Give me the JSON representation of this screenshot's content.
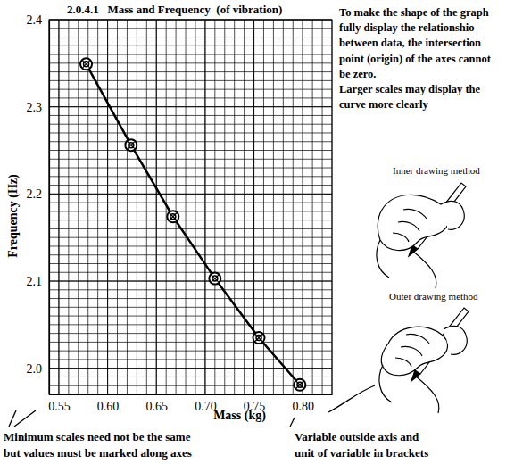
{
  "chart_data": {
    "type": "line",
    "title": "2.0.4.1   Mass and Frequency  (of vibration)",
    "x_label": "Mass (kg)",
    "y_label": "Frequency (Hz)",
    "x": [
      0.578,
      0.624,
      0.667,
      0.71,
      0.755,
      0.797
    ],
    "values": [
      2.349,
      2.256,
      2.174,
      2.103,
      2.035,
      1.981
    ],
    "color": "#000000",
    "marker": "circle",
    "line_style": "solid",
    "grid": true,
    "xlim": [
      0.54,
      0.83
    ],
    "ylim": [
      1.97,
      2.4
    ],
    "xticks": [
      0.55,
      {
        "value": 0.6,
        "label": "0.60"
      },
      0.65,
      {
        "value": 0.7,
        "label": "0.70"
      },
      0.75,
      {
        "value": 0.8,
        "label": "0.80"
      }
    ],
    "yticks": [
      {
        "value": 2,
        "label": "2.0"
      },
      2.1,
      2.2,
      2.3,
      2.4
    ],
    "annotations": [
      {
        "lines": [
          "To make the shape of the graph",
          "fully display the relationshio",
          "between data, the intersection",
          "point (origin) of the axes cannot",
          "be zero.",
          "Larger scales may display the",
          "curve more clearly"
        ]
      },
      {
        "lines": [
          "Inner drawing method"
        ]
      },
      {
        "lines": [
          "Outer drawing method"
        ]
      },
      {
        "lines": [
          "Minimum scales need not be the same",
          "but values must be marked along axes"
        ]
      },
      {
        "lines": [
          "Variable outside axis and",
          "unit of variable in brackets"
        ]
      }
    ]
  }
}
